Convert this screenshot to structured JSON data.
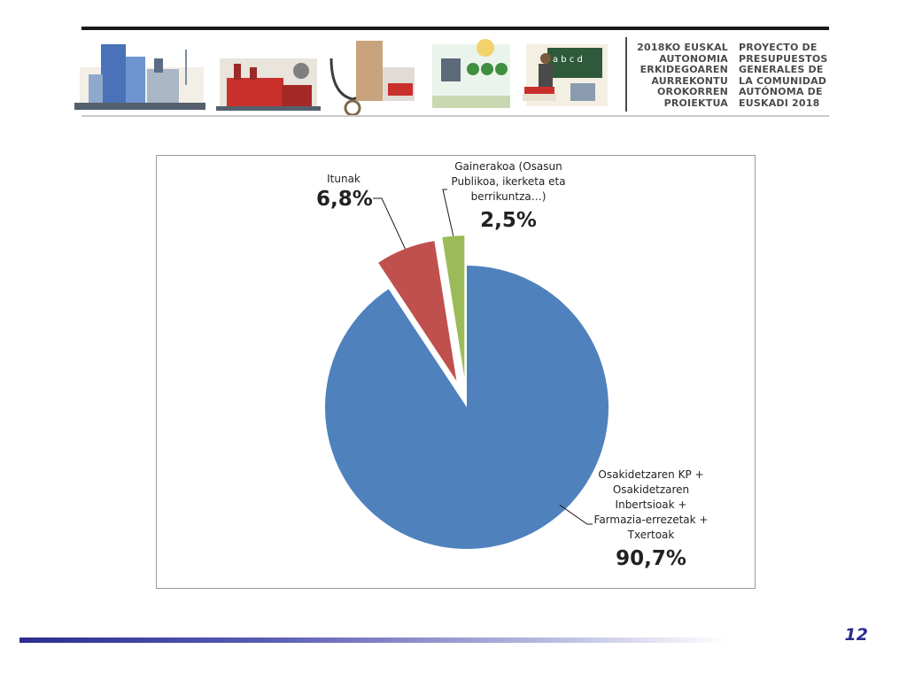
{
  "header": {
    "title_eu": [
      "2018KO EUSKAL",
      "AUTONOMIA",
      "ERKIDEGOAREN",
      "AURREKONTU",
      "OROKORREN",
      "PROIEKTUA"
    ],
    "title_es": [
      "PROYECTO DE",
      "PRESUPUESTOS",
      "GENERALES DE",
      "LA COMUNIDAD",
      "AUTÓNOMA DE",
      "EUSKADI 2018"
    ]
  },
  "chart_data": {
    "type": "pie",
    "start_angle_deg": 0,
    "direction": "clockwise",
    "exploded": true,
    "slices": [
      {
        "label_lines": [
          "Osakidetzaren KP +",
          "Osakidetzaren",
          "Inbertsioak +",
          "Farmazia-errezetak +",
          "Txertoak"
        ],
        "value": 90.7,
        "value_label": "90,7%",
        "color": "#4f81bd"
      },
      {
        "label_lines": [
          "Itunak"
        ],
        "value": 6.8,
        "value_label": "6,8%",
        "color": "#c0504d"
      },
      {
        "label_lines": [
          "Gainerakoa (Osasun",
          "Publikoa, ikerketa eta",
          "berrikuntza…)"
        ],
        "value": 2.5,
        "value_label": "2,5%",
        "color": "#9bbb59"
      }
    ]
  },
  "footer": {
    "page_number": "12"
  },
  "colors": {
    "accent": "#2b2d8f",
    "title_text": "#4b4b4b"
  }
}
